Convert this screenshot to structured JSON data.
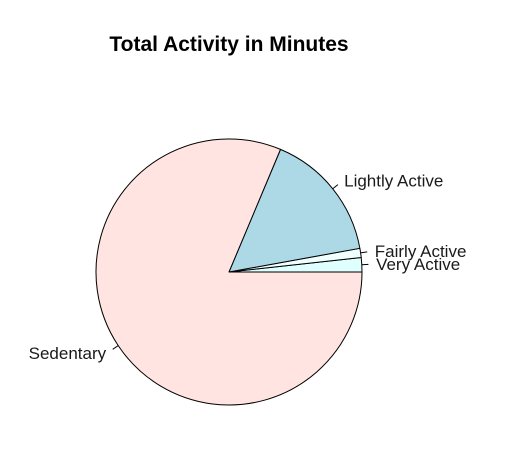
{
  "chart_data": {
    "type": "pie",
    "title": "Total Activity in Minutes",
    "start_angle_deg": 0,
    "direction": "counterclockwise",
    "slices": [
      {
        "label": "Very Active",
        "value": 1.74,
        "color": "#e0ffff"
      },
      {
        "label": "Fairly Active",
        "value": 1.11,
        "color": "#f0ffff"
      },
      {
        "label": "Lightly Active",
        "value": 15.82,
        "color": "#add8e6"
      },
      {
        "label": "Sedentary",
        "value": 81.33,
        "color": "#ffe4e1"
      }
    ]
  }
}
